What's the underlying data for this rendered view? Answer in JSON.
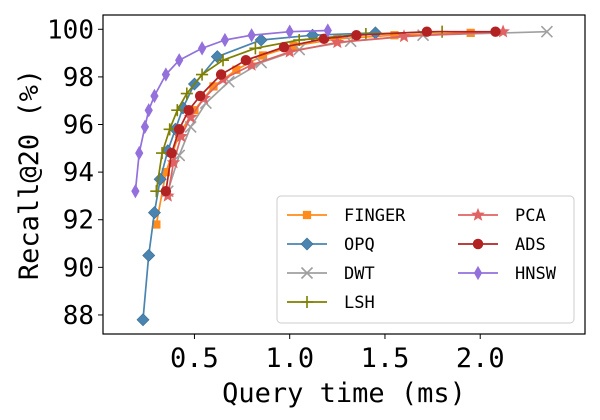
{
  "chart_data": {
    "type": "line",
    "title": "",
    "xlabel": "Query time (ms)",
    "ylabel": "Recall@20 (%)",
    "xlim": [
      0.02,
      2.55
    ],
    "ylim": [
      87.2,
      100.6
    ],
    "xticks": [
      0.5,
      1.0,
      1.5,
      2.0
    ],
    "xtick_labels": [
      "0.5",
      "1.0",
      "1.5",
      "2.0"
    ],
    "yticks": [
      88,
      90,
      92,
      94,
      96,
      98,
      100
    ],
    "ytick_labels": [
      "88",
      "90",
      "92",
      "94",
      "96",
      "98",
      "100"
    ],
    "grid": false,
    "legend_position": "lower-right",
    "series": [
      {
        "name": "FINGER",
        "color": "#ff8c1a",
        "marker": "square",
        "points": [
          [
            0.3,
            91.8
          ],
          [
            0.35,
            94.0
          ],
          [
            0.42,
            95.6
          ],
          [
            0.5,
            96.6
          ],
          [
            0.6,
            97.6
          ],
          [
            0.72,
            98.3
          ],
          [
            0.86,
            98.9
          ],
          [
            1.02,
            99.3
          ],
          [
            1.25,
            99.6
          ],
          [
            1.55,
            99.75
          ],
          [
            1.95,
            99.85
          ]
        ]
      },
      {
        "name": "OPQ",
        "color": "#4a84b0",
        "marker": "diamond",
        "points": [
          [
            0.23,
            87.8
          ],
          [
            0.26,
            90.5
          ],
          [
            0.29,
            92.3
          ],
          [
            0.32,
            93.7
          ],
          [
            0.36,
            94.9
          ],
          [
            0.4,
            95.8
          ],
          [
            0.44,
            96.7
          ],
          [
            0.5,
            97.7
          ],
          [
            0.62,
            98.85
          ],
          [
            0.85,
            99.55
          ],
          [
            1.12,
            99.75
          ],
          [
            1.45,
            99.85
          ]
        ]
      },
      {
        "name": "DWT",
        "color": "#a0a0a0",
        "marker": "x",
        "points": [
          [
            0.36,
            93.2
          ],
          [
            0.42,
            94.7
          ],
          [
            0.48,
            95.9
          ],
          [
            0.56,
            96.9
          ],
          [
            0.68,
            97.8
          ],
          [
            0.85,
            98.6
          ],
          [
            1.05,
            99.15
          ],
          [
            1.32,
            99.5
          ],
          [
            1.7,
            99.75
          ],
          [
            2.35,
            99.9
          ]
        ]
      },
      {
        "name": "LSH",
        "color": "#7f7f00",
        "marker": "plus",
        "points": [
          [
            0.3,
            93.2
          ],
          [
            0.33,
            94.8
          ],
          [
            0.37,
            95.8
          ],
          [
            0.41,
            96.6
          ],
          [
            0.46,
            97.3
          ],
          [
            0.54,
            98.1
          ],
          [
            0.65,
            98.7
          ],
          [
            0.82,
            99.2
          ],
          [
            1.05,
            99.55
          ],
          [
            1.4,
            99.8
          ],
          [
            1.8,
            99.9
          ]
        ]
      },
      {
        "name": "PCA",
        "color": "#e06262",
        "marker": "star",
        "points": [
          [
            0.36,
            93.0
          ],
          [
            0.39,
            94.4
          ],
          [
            0.43,
            95.5
          ],
          [
            0.48,
            96.3
          ],
          [
            0.55,
            97.1
          ],
          [
            0.65,
            97.9
          ],
          [
            0.8,
            98.5
          ],
          [
            1.0,
            99.05
          ],
          [
            1.25,
            99.45
          ],
          [
            1.6,
            99.7
          ],
          [
            2.12,
            99.9
          ]
        ]
      },
      {
        "name": "ADS",
        "color": "#b22222",
        "marker": "circle",
        "points": [
          [
            0.35,
            93.2
          ],
          [
            0.38,
            94.8
          ],
          [
            0.42,
            95.8
          ],
          [
            0.47,
            96.6
          ],
          [
            0.53,
            97.2
          ],
          [
            0.64,
            98.1
          ],
          [
            0.77,
            98.7
          ],
          [
            0.97,
            99.25
          ],
          [
            1.18,
            99.6
          ],
          [
            1.35,
            99.75
          ],
          [
            1.72,
            99.9
          ],
          [
            2.08,
            99.9
          ]
        ]
      },
      {
        "name": "HNSW",
        "color": "#9370db",
        "marker": "thin-diamond",
        "points": [
          [
            0.19,
            93.2
          ],
          [
            0.21,
            94.8
          ],
          [
            0.24,
            95.9
          ],
          [
            0.26,
            96.6
          ],
          [
            0.29,
            97.2
          ],
          [
            0.35,
            98.1
          ],
          [
            0.42,
            98.7
          ],
          [
            0.54,
            99.2
          ],
          [
            0.66,
            99.55
          ],
          [
            0.8,
            99.75
          ],
          [
            1.0,
            99.9
          ],
          [
            1.2,
            99.95
          ]
        ]
      }
    ]
  }
}
